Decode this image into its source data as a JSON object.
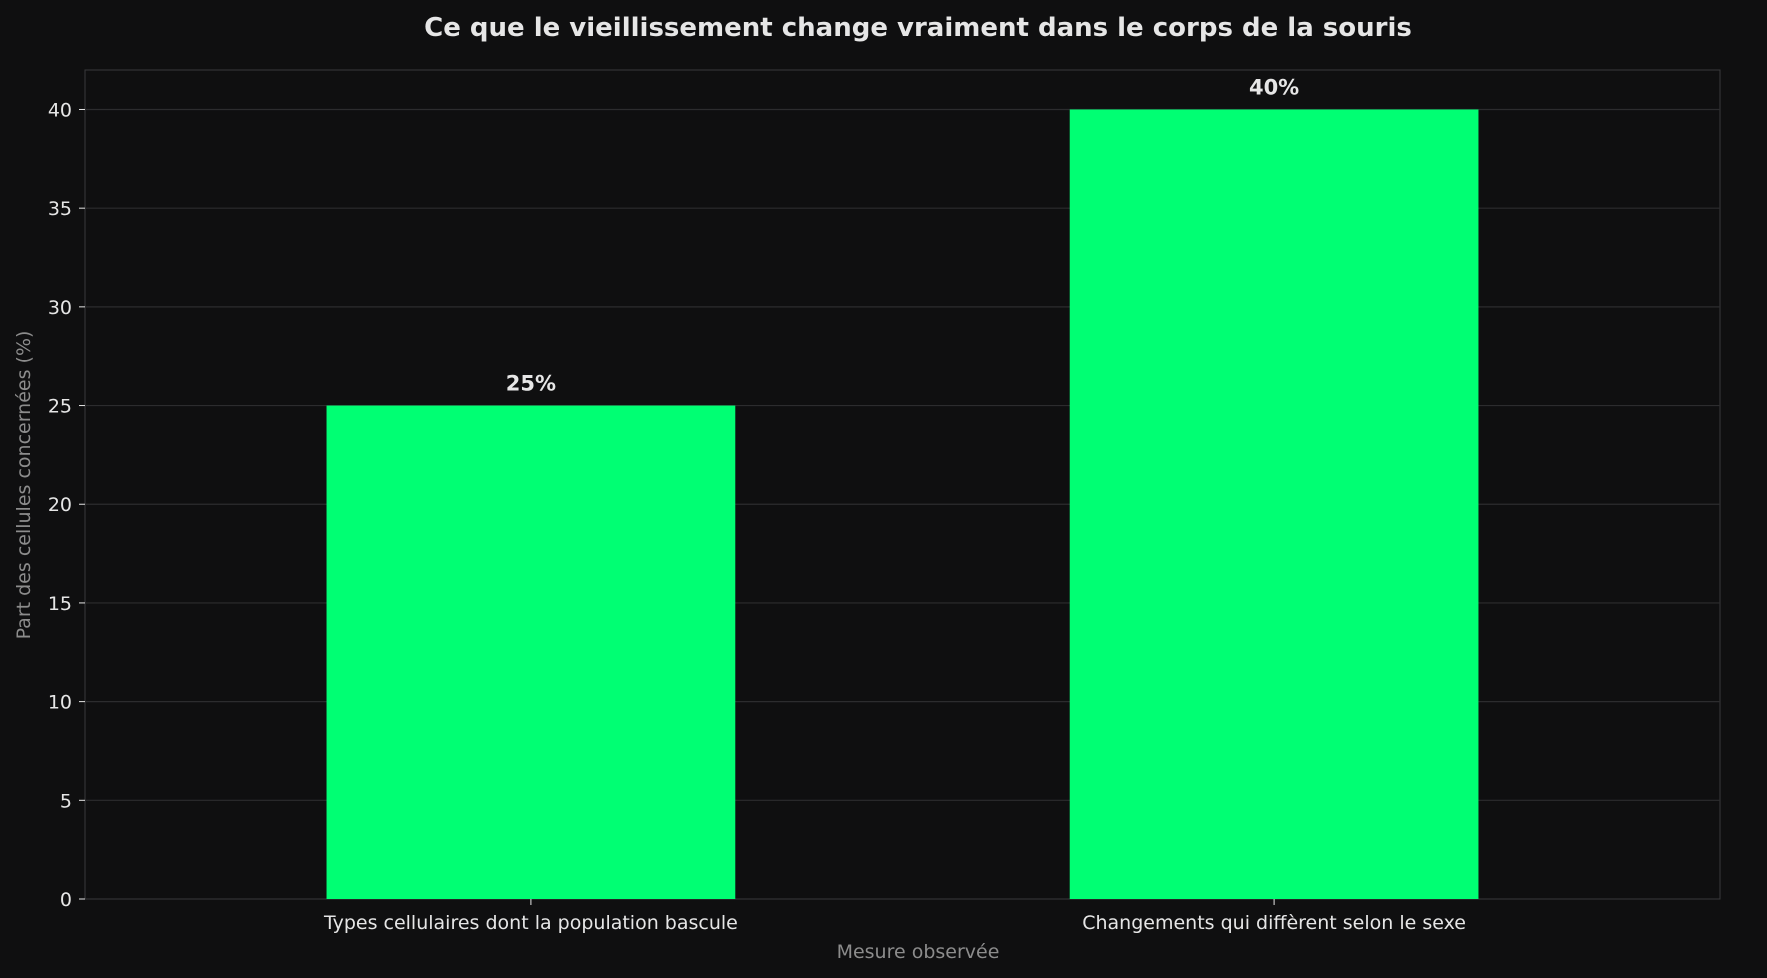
{
  "chart_data": {
    "type": "bar",
    "title": "Ce que le vieillissement change vraiment dans le corps de la souris",
    "xlabel": "Mesure observée",
    "ylabel": "Part des cellules concernées (%)",
    "categories": [
      "Types cellulaires dont la population bascule",
      "Changements qui diffèrent selon le sexe"
    ],
    "values": [
      25,
      40
    ],
    "data_labels": [
      "25%",
      "40%"
    ],
    "ylim": [
      0,
      42
    ],
    "yticks": [
      0,
      5,
      10,
      15,
      20,
      25,
      30,
      35,
      40
    ],
    "grid": true,
    "legend": "none",
    "colors": {
      "background": "#0f0f10",
      "bar": "#00ff73",
      "grid": "#2c2c2e",
      "axis": "#3a3a3c",
      "text": "#e6e6e6",
      "muted": "#8c8c8c"
    }
  }
}
